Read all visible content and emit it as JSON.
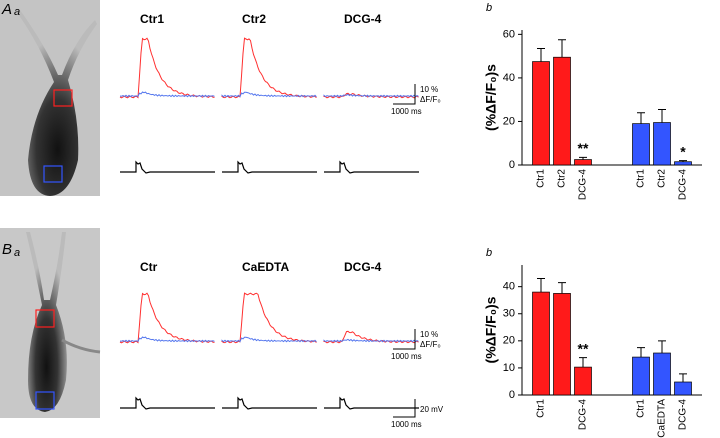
{
  "panels": [
    {
      "letter": "A",
      "sub": "a",
      "traces": [
        "Ctr1",
        "Ctr2",
        "DCG-4"
      ],
      "scale": {
        "percent": "10 %",
        "ratio": "ΔF/F₀",
        "time": "1000 ms"
      }
    },
    {
      "letter": "B",
      "sub": "a",
      "traces": [
        "Ctr",
        "CaEDTA",
        "DCG-4"
      ],
      "scale": {
        "percent": "10 %",
        "ratio": "ΔF/F₀",
        "time": "1000 ms",
        "voltage": "20 mV",
        "time2": "1000 ms"
      }
    }
  ],
  "chart_data": [
    {
      "type": "bar",
      "label": "b",
      "ylabel": "(%ΔF/F₀)s",
      "categories": [
        "Ctr1",
        "Ctr2",
        "DCG-4",
        "Ctr1",
        "Ctr2",
        "DCG-4"
      ],
      "series": [
        {
          "color": "#ff1a1a",
          "values": [
            47.5,
            49.5,
            2.5,
            null,
            null,
            null
          ],
          "errors": [
            6,
            8,
            1,
            null,
            null,
            null
          ],
          "markers": [
            null,
            null,
            "**",
            null,
            null,
            null
          ]
        },
        {
          "color": "#3355ff",
          "values": [
            null,
            null,
            null,
            19,
            19.5,
            1.5
          ],
          "errors": [
            null,
            null,
            null,
            5,
            6,
            0.5
          ],
          "markers": [
            null,
            null,
            null,
            null,
            null,
            "*"
          ]
        }
      ],
      "ylim": [
        0,
        62
      ],
      "yticks": [
        0,
        20,
        40,
        60
      ]
    },
    {
      "type": "bar",
      "label": "b",
      "ylabel": "(%ΔF/F₀)s",
      "categories": [
        "Ctr1",
        null,
        "DCG-4",
        "Ctr1",
        "CaEDTA",
        "DCG-4"
      ],
      "series": [
        {
          "color": "#ff1a1a",
          "values": [
            38,
            37.5,
            10.3,
            null,
            null,
            null
          ],
          "errors": [
            5,
            4,
            3.5,
            null,
            null,
            null
          ],
          "markers": [
            null,
            null,
            "**",
            null,
            null,
            null
          ]
        },
        {
          "color": "#3355ff",
          "values": [
            null,
            null,
            null,
            14,
            15.5,
            4.8
          ],
          "errors": [
            null,
            null,
            null,
            3.5,
            4.5,
            3
          ],
          "markers": [
            null,
            null,
            null,
            null,
            null,
            null
          ]
        }
      ],
      "ylim": [
        0,
        48
      ],
      "yticks": [
        0,
        10,
        20,
        30,
        40
      ]
    }
  ]
}
